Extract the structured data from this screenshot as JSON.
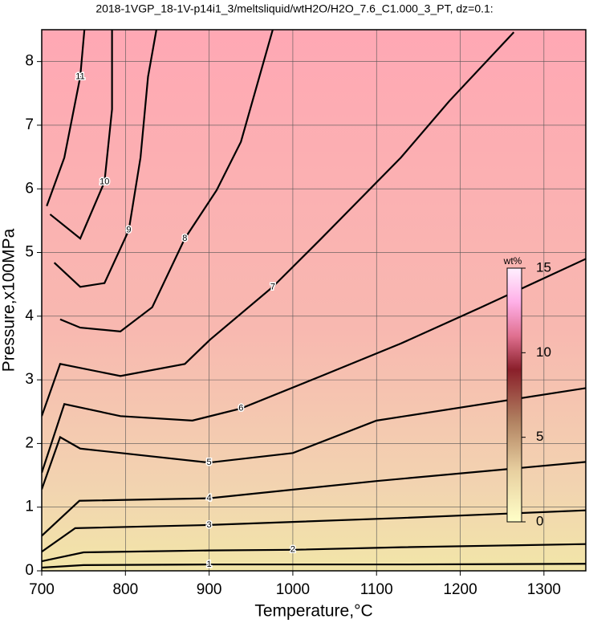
{
  "chart_data": {
    "type": "contour",
    "title": "2018-1VGP_18-1V-p14i1_3/meltsliquid/wtH2O/H2O_7.6_C1.000_3_PT, dz=0.1:",
    "xlabel": "Temperature,°C",
    "ylabel": "Pressure,x100MPa",
    "xlim": [
      700,
      1350
    ],
    "ylim": [
      0,
      8.5
    ],
    "xticks": [
      700,
      800,
      900,
      1000,
      1100,
      1200,
      1300
    ],
    "yticks": [
      0,
      1,
      2,
      3,
      4,
      5,
      6,
      7,
      8
    ],
    "grid": true,
    "line_color": "#000000",
    "colorbar": {
      "label": "wt%",
      "lim": [
        0,
        15
      ],
      "ticks": [
        0,
        5,
        10,
        15
      ],
      "colormap": [
        {
          "value": 0,
          "color": "#ffffc8"
        },
        {
          "value": 3,
          "color": "#e8d0a0"
        },
        {
          "value": 6,
          "color": "#b08060"
        },
        {
          "value": 9,
          "color": "#8a1f2a"
        },
        {
          "value": 11,
          "color": "#e07090"
        },
        {
          "value": 13,
          "color": "#ffb0e8"
        },
        {
          "value": 15,
          "color": "#fff0ff"
        }
      ]
    },
    "contours": [
      {
        "level": 1,
        "x": [
          700,
          750,
          900,
          1130,
          1350
        ],
        "y": [
          0.05,
          0.09,
          0.1,
          0.1,
          0.11
        ]
      },
      {
        "level": 2,
        "x": [
          700,
          750,
          900,
          1000,
          1130,
          1350
        ],
        "y": [
          0.15,
          0.29,
          0.32,
          0.33,
          0.37,
          0.42
        ]
      },
      {
        "level": 3,
        "x": [
          700,
          740,
          900,
          1130,
          1350
        ],
        "y": [
          0.3,
          0.67,
          0.72,
          0.83,
          0.95
        ]
      },
      {
        "level": 4,
        "x": [
          700,
          745,
          900,
          1100,
          1350
        ],
        "y": [
          0.55,
          1.1,
          1.14,
          1.41,
          1.71
        ]
      },
      {
        "level": 5,
        "x": [
          700,
          722,
          746,
          900,
          1000,
          1100,
          1350
        ],
        "y": [
          1.28,
          2.1,
          1.92,
          1.7,
          1.85,
          2.36,
          2.87
        ]
      },
      {
        "level": 6,
        "x": [
          700,
          727,
          794,
          880,
          938,
          1034,
          1129,
          1225,
          1350
        ],
        "y": [
          1.54,
          2.62,
          2.43,
          2.36,
          2.55,
          3.06,
          3.57,
          4.14,
          4.9
        ]
      },
      {
        "level": 7,
        "x": [
          700,
          722,
          794,
          871,
          901,
          976,
          1034,
          1129,
          1187,
          1264
        ],
        "y": [
          2.43,
          3.25,
          3.06,
          3.25,
          3.63,
          4.46,
          5.22,
          6.49,
          7.38,
          8.46
        ]
      },
      {
        "level": 8,
        "x": [
          722,
          746,
          794,
          832,
          871,
          909,
          938,
          976
        ],
        "y": [
          3.95,
          3.82,
          3.76,
          4.14,
          5.22,
          5.98,
          6.74,
          8.5
        ]
      },
      {
        "level": 9,
        "x": [
          715,
          746,
          775,
          804,
          818,
          827,
          837
        ],
        "y": [
          4.84,
          4.46,
          4.52,
          5.35,
          6.49,
          7.76,
          8.5
        ]
      },
      {
        "level": 10,
        "x": [
          710,
          746,
          775,
          784,
          784
        ],
        "y": [
          5.6,
          5.22,
          6.11,
          7.25,
          8.5
        ]
      },
      {
        "level": 11,
        "x": [
          706,
          727,
          746,
          751
        ],
        "y": [
          5.73,
          6.49,
          7.76,
          8.5
        ]
      }
    ]
  }
}
